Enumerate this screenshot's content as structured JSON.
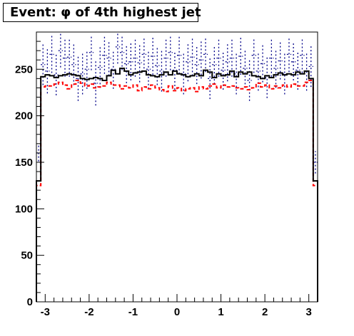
{
  "chart_data": {
    "type": "histogram",
    "title": "Event: φ of 4th highest jet",
    "xlabel": "",
    "ylabel": "",
    "xlim": [
      -3.2,
      3.2
    ],
    "ylim": [
      0,
      290
    ],
    "xticks": [
      "-3",
      "-2",
      "-1",
      "0",
      "1",
      "2",
      "3"
    ],
    "yticks": [
      "0",
      "50",
      "100",
      "150",
      "200",
      "250"
    ],
    "grid": false,
    "legend": "none",
    "bins": 64,
    "series": [
      {
        "color": "#000000",
        "style": "solid",
        "values": [
          130,
          242,
          244,
          243,
          241,
          243,
          244,
          245,
          244,
          243,
          240,
          239,
          240,
          241,
          240,
          238,
          243,
          249,
          245,
          251,
          248,
          244,
          246,
          247,
          248,
          244,
          243,
          242,
          244,
          247,
          244,
          248,
          245,
          244,
          242,
          243,
          245,
          243,
          249,
          247,
          241,
          245,
          243,
          244,
          248,
          242,
          247,
          245,
          247,
          243,
          242,
          240,
          243,
          241,
          244,
          246,
          244,
          245,
          244,
          247,
          245,
          248,
          240,
          130
        ]
      },
      {
        "color": "#ff0000",
        "style": "dashed",
        "values": [
          125,
          231,
          232,
          232,
          234,
          236,
          233,
          229,
          234,
          238,
          235,
          232,
          234,
          230,
          231,
          232,
          236,
          233,
          233,
          229,
          232,
          230,
          233,
          227,
          231,
          229,
          233,
          230,
          228,
          226,
          232,
          227,
          230,
          227,
          229,
          230,
          226,
          231,
          229,
          232,
          234,
          230,
          233,
          231,
          232,
          230,
          229,
          231,
          228,
          230,
          235,
          231,
          233,
          229,
          232,
          230,
          233,
          231,
          234,
          232,
          232,
          236,
          238,
          125
        ]
      },
      {
        "color": "#000088",
        "style": "dotted",
        "values": [
          160,
          255,
          248,
          266,
          244,
          270,
          262,
          263,
          255,
          240,
          245,
          250,
          268,
          235,
          252,
          265,
          262,
          250,
          274,
          268,
          256,
          258,
          262,
          257,
          266,
          250,
          264,
          254,
          248,
          262,
          268,
          249,
          265,
          245,
          258,
          263,
          255,
          260,
          266,
          240,
          255,
          262,
          249,
          258,
          262,
          245,
          264,
          251,
          238,
          265,
          248,
          256,
          241,
          262,
          251,
          259,
          245,
          266,
          258,
          249,
          265,
          248,
          253,
          150
        ],
        "errors": [
          9,
          22,
          24,
          20,
          22,
          18,
          20,
          21,
          22,
          24,
          22,
          21,
          19,
          24,
          22,
          20,
          19,
          21,
          18,
          19,
          21,
          20,
          20,
          21,
          19,
          21,
          20,
          21,
          22,
          20,
          19,
          21,
          20,
          22,
          21,
          20,
          21,
          20,
          19,
          22,
          21,
          20,
          21,
          21,
          20,
          22,
          20,
          21,
          22,
          19,
          21,
          20,
          22,
          20,
          21,
          20,
          22,
          19,
          20,
          21,
          19,
          21,
          22,
          12
        ]
      }
    ]
  }
}
